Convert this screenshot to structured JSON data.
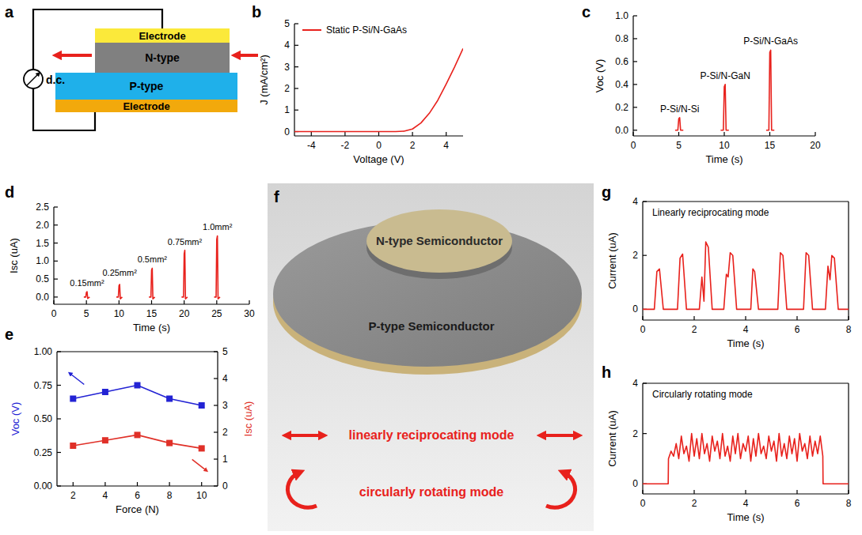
{
  "panel_letters": [
    "a",
    "b",
    "c",
    "d",
    "e",
    "f",
    "g",
    "h"
  ],
  "diagram_a": {
    "top_electrode": "Electrode",
    "n_layer": "N-type",
    "p_layer": "P-type",
    "bottom_electrode": "Electrode",
    "meter": "d.c."
  },
  "diagram_f": {
    "n_label": "N-type Semiconductor",
    "p_label": "P-type Semiconductor",
    "modes": [
      "linearly reciprocating mode",
      "circularly rotating mode"
    ]
  },
  "chart_data": [
    {
      "type": "line",
      "x_label": "Voltage (V)",
      "y_label": "J (mA/cm²)",
      "x": [
        -5,
        -4,
        -3,
        -2,
        -1,
        0,
        1,
        1.5,
        2,
        2.5,
        3,
        3.5,
        4,
        4.5,
        5
      ],
      "series": [
        {
          "name": "Static P-Si/N-GaAs",
          "color": "#e8211c",
          "values": [
            0,
            0,
            0,
            0,
            0,
            0,
            0,
            0.02,
            0.12,
            0.4,
            0.85,
            1.45,
            2.2,
            3.0,
            3.85
          ]
        }
      ],
      "xlim": [
        -5,
        5
      ],
      "xticks": [
        -4,
        -2,
        0,
        2,
        4
      ],
      "ylim": [
        -0.2,
        5
      ],
      "yticks": [
        0,
        1,
        2,
        3,
        4,
        5
      ],
      "legend": "upper left"
    },
    {
      "type": "line",
      "x_label": "Time (s)",
      "y_label": "Voc (V)",
      "x": [
        4.6,
        4.9,
        5.0,
        5.1,
        5.2,
        5.5,
        7.5,
        9.6,
        9.9,
        10.0,
        10.1,
        10.2,
        10.5,
        12.5,
        14.6,
        14.9,
        15.0,
        15.1,
        15.2,
        15.5
      ],
      "values": [
        0,
        0,
        0.1,
        0.11,
        0,
        0,
        null,
        0,
        0,
        0.38,
        0.4,
        0,
        0,
        null,
        0,
        0,
        0.68,
        0.7,
        0,
        0
      ],
      "color": "#e8211c",
      "annotations": [
        "P-Si/N-Si",
        "P-Si/N-GaN",
        "P-Si/N-GaAs"
      ],
      "xlim": [
        0,
        20
      ],
      "xticks": [
        0,
        5,
        10,
        15,
        20
      ],
      "ylim": [
        -0.05,
        1.0
      ],
      "yticks": [
        {
          "value": 0,
          "label": "0.0"
        },
        0.2,
        0.4,
        0.6,
        0.8,
        {
          "value": 1,
          "label": "1.0"
        }
      ]
    },
    {
      "type": "line",
      "x_label": "Time (s)",
      "y_label": "Isc (uA)",
      "x": [
        4.6,
        4.9,
        5.0,
        5.1,
        5.2,
        5.5,
        7.5,
        9.6,
        9.9,
        10.0,
        10.1,
        10.2,
        10.5,
        12.5,
        14.6,
        14.9,
        15.0,
        15.1,
        15.2,
        15.5,
        17.5,
        19.6,
        19.9,
        20.0,
        20.1,
        20.2,
        20.5,
        22.5,
        24.6,
        24.9,
        25.0,
        25.1,
        25.2,
        25.5
      ],
      "values": [
        0,
        0,
        0.13,
        0.15,
        -0.04,
        0,
        null,
        0,
        0,
        0.32,
        0.35,
        -0.05,
        0,
        null,
        0,
        0,
        0.75,
        0.8,
        -0.05,
        0,
        null,
        0,
        0,
        1.2,
        1.3,
        -0.05,
        0,
        null,
        0,
        0,
        1.6,
        1.7,
        -0.05,
        0
      ],
      "color": "#e8211c",
      "annotations": [
        "0.15mm²",
        "0.25mm²",
        "0.5mm²",
        "0.75mm²",
        "1.0mm²"
      ],
      "xlim": [
        0,
        30
      ],
      "xticks": [
        0,
        5,
        10,
        15,
        20,
        25,
        30
      ],
      "ylim": [
        -0.2,
        2.5
      ],
      "yticks": [
        {
          "value": 0,
          "label": "0.0"
        },
        0.5,
        {
          "value": 1,
          "label": "1.0"
        },
        1.5,
        {
          "value": 2,
          "label": "2.0"
        },
        2.5
      ]
    },
    {
      "type": "line",
      "x_label": "Force (N)",
      "y_label": "Voc (V)",
      "y2_label": "Isc (uA)",
      "x": [
        2,
        4,
        6,
        8,
        10
      ],
      "series": [
        {
          "color": "#2323d4",
          "marker": "square",
          "values": [
            0.65,
            0.7,
            0.75,
            0.65,
            0.6
          ]
        },
        {
          "color": "#e03028",
          "marker": "square",
          "axis": "y2",
          "values": [
            1.5,
            1.7,
            1.9,
            1.6,
            1.4
          ]
        }
      ],
      "xlim": [
        1,
        11
      ],
      "xticks": [
        2,
        4,
        6,
        8,
        10
      ],
      "ylim": [
        0,
        1
      ],
      "yticks": [
        {
          "value": 0,
          "label": "0.00"
        },
        0.25,
        {
          "value": 0.5,
          "label": "0.50"
        },
        0.75,
        {
          "value": 1,
          "label": "1.00"
        }
      ],
      "y2lim": [
        0,
        5
      ],
      "y2ticks": [
        0,
        1,
        2,
        3,
        4,
        5
      ]
    },
    {
      "type": "line",
      "title": "Linearly reciprocating mode",
      "x_label": "Time (s)",
      "y_label": "Current (uA)",
      "x": [
        0,
        0.45,
        0.55,
        0.65,
        0.8,
        1.35,
        1.45,
        1.55,
        1.7,
        2.2,
        2.3,
        2.38,
        2.45,
        2.55,
        2.7,
        3.15,
        3.25,
        3.32,
        3.4,
        3.5,
        3.65,
        4.2,
        4.28,
        4.35,
        4.5,
        5.25,
        5.35,
        5.45,
        5.6,
        6.25,
        6.35,
        6.45,
        6.6,
        7.1,
        7.2,
        7.28,
        7.35,
        7.45,
        7.6,
        8
      ],
      "values": [
        0,
        0,
        1.4,
        1.5,
        0,
        0,
        1.9,
        2.05,
        0,
        0,
        1.2,
        0.3,
        2.5,
        2.3,
        0,
        0,
        1.3,
        1.2,
        2.1,
        2.0,
        0,
        0,
        1.5,
        1.4,
        0,
        0,
        2.1,
        2.0,
        0,
        0,
        2.1,
        2.0,
        0,
        0,
        1.6,
        1.1,
        2.0,
        1.9,
        0,
        0
      ],
      "color": "#e8211c",
      "xlim": [
        0,
        8
      ],
      "xticks": [
        0,
        2,
        4,
        6,
        8
      ],
      "ylim": [
        -0.4,
        4
      ],
      "yticks": [
        0,
        2,
        4
      ]
    },
    {
      "type": "line",
      "title": "Circularly rotating mode",
      "x_label": "Time (s)",
      "y_label": "Current (uA)",
      "x": [
        0,
        0.99,
        1.0,
        1.1,
        1.2,
        1.3,
        1.4,
        1.5,
        1.6,
        1.7,
        1.8,
        1.9,
        2.0,
        2.1,
        2.2,
        2.3,
        2.4,
        2.5,
        2.6,
        2.7,
        2.8,
        2.9,
        3.0,
        3.1,
        3.2,
        3.3,
        3.4,
        3.5,
        3.6,
        3.7,
        3.8,
        3.9,
        4.0,
        4.1,
        4.2,
        4.3,
        4.4,
        4.5,
        4.6,
        4.7,
        4.8,
        4.9,
        5.0,
        5.1,
        5.2,
        5.3,
        5.4,
        5.5,
        5.6,
        5.7,
        5.8,
        5.9,
        6.0,
        6.1,
        6.2,
        6.3,
        6.4,
        6.5,
        6.6,
        6.7,
        6.8,
        6.9,
        7.0,
        7.01,
        8
      ],
      "values": [
        0,
        0,
        1.0,
        1.3,
        1.1,
        1.6,
        1.0,
        1.9,
        1.2,
        1.5,
        0.9,
        2.0,
        1.1,
        1.8,
        1.0,
        2.0,
        1.2,
        1.6,
        0.9,
        1.9,
        1.3,
        1.7,
        1.0,
        2.0,
        1.1,
        1.5,
        0.9,
        1.9,
        1.2,
        2.0,
        1.0,
        1.6,
        1.3,
        1.9,
        0.9,
        1.8,
        1.1,
        2.0,
        1.2,
        1.5,
        1.0,
        1.9,
        1.3,
        1.7,
        0.9,
        2.0,
        1.1,
        1.6,
        1.0,
        1.9,
        1.2,
        1.8,
        0.9,
        2.0,
        1.3,
        1.6,
        1.0,
        1.9,
        1.1,
        1.7,
        1.2,
        1.9,
        1.1,
        0,
        0
      ],
      "color": "#e8211c",
      "xlim": [
        0,
        8
      ],
      "xticks": [
        0,
        2,
        4,
        6,
        8
      ],
      "ylim": [
        -0.4,
        4
      ],
      "yticks": [
        0,
        2,
        4
      ]
    }
  ]
}
